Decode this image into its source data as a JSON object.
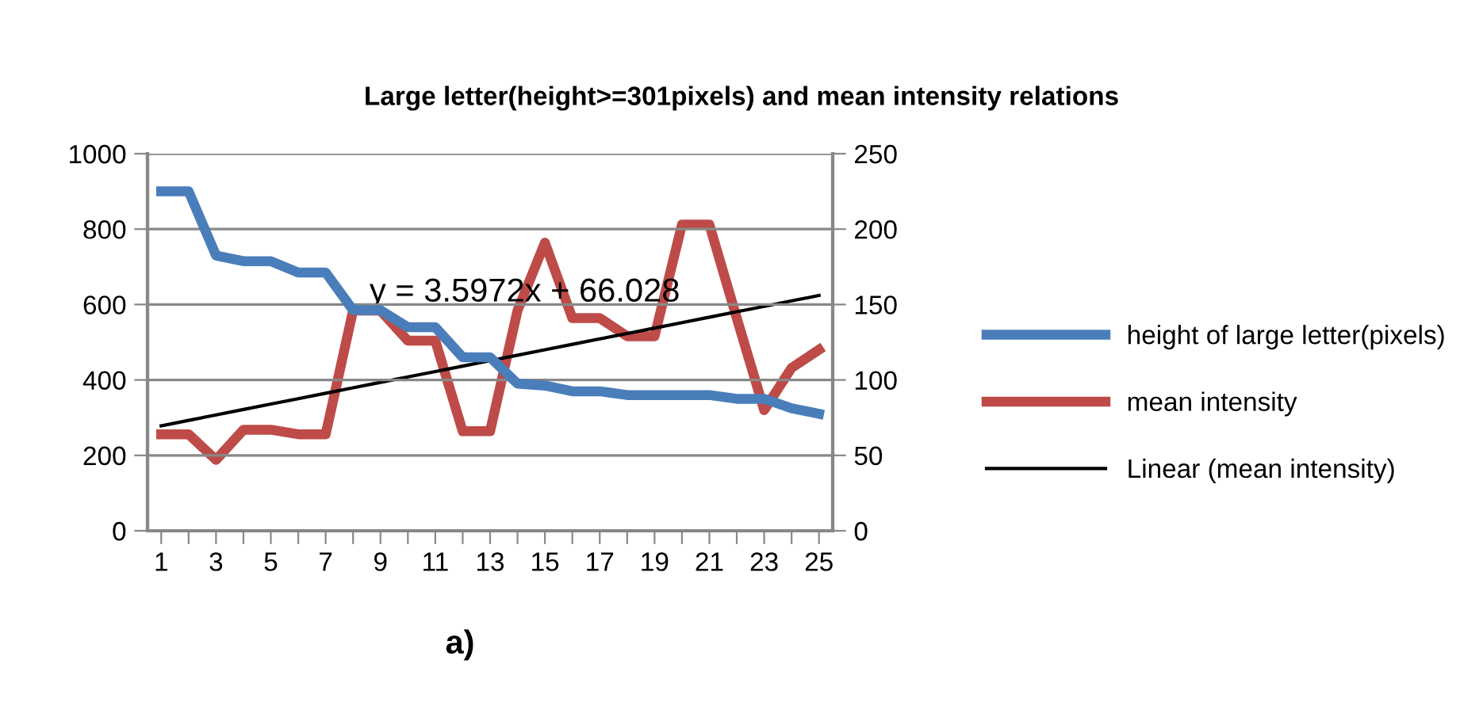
{
  "chart_data": {
    "type": "line",
    "title": "Large letter(height>=301pixels) and mean intensity relations",
    "categories": [
      "1",
      null,
      "3",
      null,
      "5",
      null,
      "7",
      null,
      "9",
      null,
      "11",
      null,
      "13",
      null,
      "15",
      null,
      "17",
      null,
      "19",
      null,
      "21",
      null,
      "23",
      null,
      "25"
    ],
    "series": [
      {
        "name": "height of large letter(pixels)",
        "color": "#4a7ebb",
        "values": [
          900,
          900,
          730,
          715,
          715,
          685,
          685,
          585,
          585,
          540,
          540,
          460,
          460,
          390,
          385,
          370,
          370,
          360,
          360,
          360,
          360,
          350,
          350,
          325,
          310
        ]
      },
      {
        "name": "mean intensity",
        "color": "#be4b48",
        "axis": "y2",
        "values": [
          64,
          64,
          47,
          67,
          67,
          64,
          64,
          146,
          146,
          126,
          126,
          66,
          66,
          146,
          191,
          141,
          141,
          129,
          129,
          203,
          203,
          141,
          80,
          108,
          120
        ]
      },
      {
        "name": "Linear (mean intensity)",
        "color": "#000000",
        "axis": "y2",
        "values": [
          69.6,
          73.2,
          76.8,
          80.4,
          84.0,
          87.6,
          91.2,
          94.8,
          98.4,
          102.0,
          105.6,
          109.2,
          112.8,
          116.4,
          120.0,
          123.6,
          127.2,
          130.8,
          134.4,
          138.0,
          141.6,
          145.2,
          148.8,
          152.4,
          156.0
        ]
      }
    ],
    "ylim": [
      0,
      1000
    ],
    "yticks": [
      0,
      200,
      400,
      600,
      800,
      1000
    ],
    "y2lim": [
      0,
      250
    ],
    "y2ticks": [
      0,
      50,
      100,
      150,
      200,
      250
    ],
    "grid": "y",
    "legend": "right",
    "marker": "none",
    "line_style": "solid",
    "annotations": [
      "y = 3.5972x + 66.028",
      "a)"
    ]
  }
}
